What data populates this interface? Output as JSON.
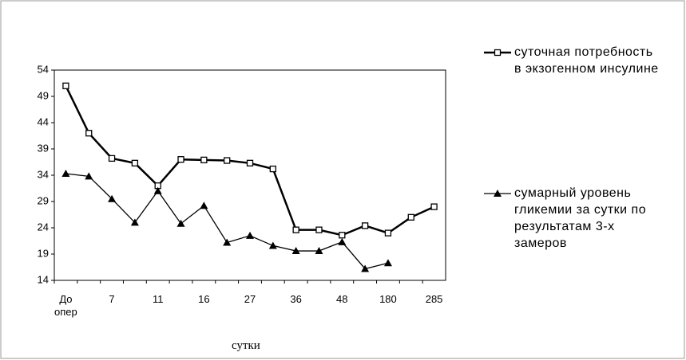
{
  "chart_data": {
    "type": "line",
    "x_label": "сутки",
    "categories": [
      "До опер",
      null,
      "7",
      null,
      "11",
      null,
      "16",
      null,
      "27",
      null,
      "36",
      null,
      "48",
      null,
      "180",
      null,
      "285"
    ],
    "series": [
      {
        "name": "суточная потребность в экзогенном инсулине",
        "color": "#000000",
        "marker": "square",
        "values": [
          51,
          42,
          37.2,
          36.3,
          32,
          37,
          36.9,
          36.8,
          36.3,
          35.2,
          23.6,
          23.6,
          22.6,
          24.4,
          23,
          26,
          28
        ]
      },
      {
        "name": "сумарный уровень гликемии за сутки по результатам 3-х замеров",
        "color": "#000000",
        "marker": "triangle",
        "values": [
          34.3,
          33.8,
          29.5,
          25,
          31,
          24.8,
          28.2,
          21.2,
          22.5,
          20.6,
          19.6,
          19.6,
          21.3,
          16.2,
          17.3,
          null,
          null
        ]
      }
    ],
    "ylim": [
      14,
      54
    ],
    "yticks": [
      14,
      19,
      24,
      29,
      34,
      39,
      44,
      49,
      54
    ],
    "grid": false
  }
}
